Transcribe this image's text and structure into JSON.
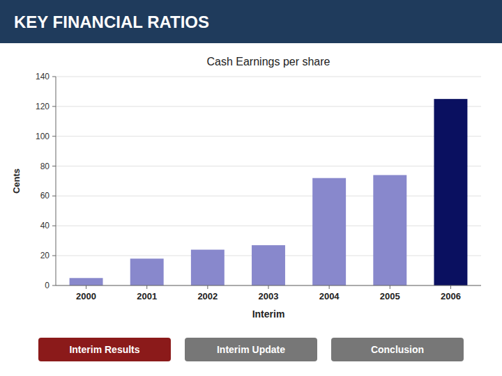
{
  "title": "KEY FINANCIAL RATIOS",
  "buttons": [
    {
      "label": "Interim Results",
      "color": "#8b1a1a"
    },
    {
      "label": "Interim Update",
      "color": "#777777"
    },
    {
      "label": "Conclusion",
      "color": "#777777"
    }
  ],
  "chart_data": {
    "type": "bar",
    "title": "Cash Earnings per share",
    "xlabel": "Interim",
    "ylabel": "Cents",
    "categories": [
      "2000",
      "2001",
      "2002",
      "2003",
      "2004",
      "2005",
      "2006"
    ],
    "values": [
      5,
      18,
      24,
      27,
      72,
      74,
      125
    ],
    "colors": [
      "#8888cc",
      "#8888cc",
      "#8888cc",
      "#8888cc",
      "#8888cc",
      "#8888cc",
      "#0a1060"
    ],
    "ylim": [
      0,
      140
    ],
    "yticks": [
      0,
      20,
      40,
      60,
      80,
      100,
      120,
      140
    ],
    "grid": true
  }
}
